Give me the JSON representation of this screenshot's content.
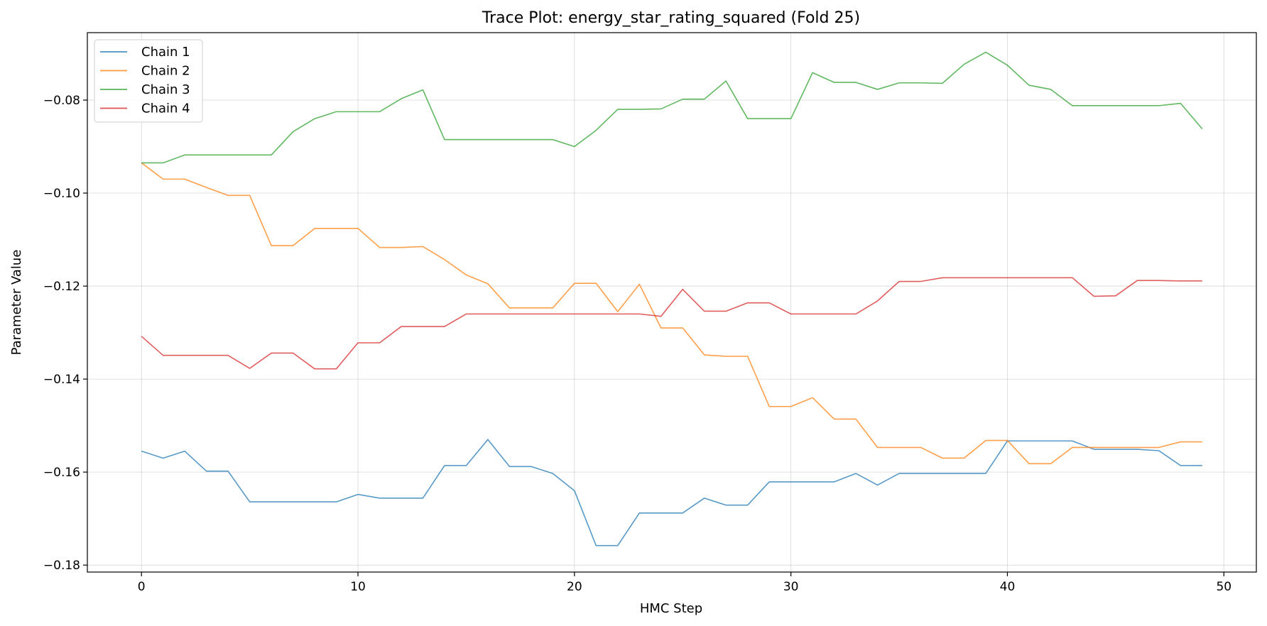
{
  "chart_data": {
    "type": "line",
    "title": "Trace Plot: energy_star_rating_squared (Fold 25)",
    "xlabel": "HMC Step",
    "ylabel": "Parameter Value",
    "xlim": [
      -2.5,
      51.5
    ],
    "ylim": [
      -0.1815,
      -0.0655
    ],
    "xticks": [
      0,
      10,
      20,
      30,
      40,
      50
    ],
    "yticks": [
      -0.18,
      -0.16,
      -0.14,
      -0.12,
      -0.1,
      -0.08
    ],
    "ytick_labels": [
      "−0.18",
      "−0.16",
      "−0.14",
      "−0.12",
      "−0.10",
      "−0.08"
    ],
    "grid": true,
    "legend_position": "top-left",
    "x": [
      0,
      1,
      2,
      3,
      4,
      5,
      6,
      7,
      8,
      9,
      10,
      11,
      12,
      13,
      14,
      15,
      16,
      17,
      18,
      19,
      20,
      21,
      22,
      23,
      24,
      25,
      26,
      27,
      28,
      29,
      30,
      31,
      32,
      33,
      34,
      35,
      36,
      37,
      38,
      39,
      40,
      41,
      42,
      43,
      44,
      45,
      46,
      47,
      48,
      49
    ],
    "series": [
      {
        "name": "Chain 1",
        "color": "#1f77b4",
        "values": [
          -0.1555,
          -0.157,
          -0.1555,
          -0.1598,
          -0.1598,
          -0.1664,
          -0.1664,
          -0.1664,
          -0.1664,
          -0.1664,
          -0.1648,
          -0.1656,
          -0.1656,
          -0.1656,
          -0.1586,
          -0.1586,
          -0.153,
          -0.1588,
          -0.1588,
          -0.1603,
          -0.164,
          -0.1758,
          -0.1758,
          -0.1688,
          -0.1688,
          -0.1688,
          -0.1656,
          -0.1671,
          -0.1671,
          -0.1621,
          -0.1621,
          -0.1621,
          -0.1621,
          -0.1603,
          -0.1628,
          -0.1603,
          -0.1603,
          -0.1603,
          -0.1603,
          -0.1603,
          -0.1533,
          -0.1533,
          -0.1533,
          -0.1533,
          -0.1551,
          -0.1551,
          -0.1551,
          -0.1554,
          -0.1586,
          -0.1586
        ]
      },
      {
        "name": "Chain 2",
        "color": "#ff7f0e",
        "values": [
          -0.0935,
          -0.097,
          -0.097,
          -0.0988,
          -0.1005,
          -0.1005,
          -0.1113,
          -0.1113,
          -0.1076,
          -0.1076,
          -0.1076,
          -0.1117,
          -0.1117,
          -0.1115,
          -0.1143,
          -0.1176,
          -0.1195,
          -0.1247,
          -0.1247,
          -0.1247,
          -0.1194,
          -0.1194,
          -0.1255,
          -0.1196,
          -0.129,
          -0.129,
          -0.1348,
          -0.1351,
          -0.1351,
          -0.1459,
          -0.1459,
          -0.144,
          -0.1486,
          -0.1486,
          -0.1547,
          -0.1547,
          -0.1547,
          -0.157,
          -0.157,
          -0.1532,
          -0.1532,
          -0.1582,
          -0.1582,
          -0.1547,
          -0.1547,
          -0.1547,
          -0.1547,
          -0.1547,
          -0.1535,
          -0.1535
        ]
      },
      {
        "name": "Chain 3",
        "color": "#2ca02c",
        "values": [
          -0.0935,
          -0.0935,
          -0.0918,
          -0.0918,
          -0.0918,
          -0.0918,
          -0.0918,
          -0.0868,
          -0.084,
          -0.0825,
          -0.0825,
          -0.0825,
          -0.0797,
          -0.0778,
          -0.0885,
          -0.0885,
          -0.0885,
          -0.0885,
          -0.0885,
          -0.0885,
          -0.09,
          -0.0865,
          -0.082,
          -0.082,
          -0.0819,
          -0.0798,
          -0.0798,
          -0.0759,
          -0.084,
          -0.084,
          -0.084,
          -0.0741,
          -0.0762,
          -0.0762,
          -0.0777,
          -0.0763,
          -0.0763,
          -0.0764,
          -0.0723,
          -0.0697,
          -0.0725,
          -0.0768,
          -0.0777,
          -0.0812,
          -0.0812,
          -0.0812,
          -0.0812,
          -0.0812,
          -0.0807,
          -0.0862
        ]
      },
      {
        "name": "Chain 4",
        "color": "#d62728",
        "values": [
          -0.1308,
          -0.1349,
          -0.1349,
          -0.1349,
          -0.1349,
          -0.1377,
          -0.1344,
          -0.1344,
          -0.1378,
          -0.1378,
          -0.1322,
          -0.1322,
          -0.1287,
          -0.1287,
          -0.1287,
          -0.126,
          -0.126,
          -0.126,
          -0.126,
          -0.126,
          -0.126,
          -0.126,
          -0.126,
          -0.126,
          -0.1265,
          -0.1207,
          -0.1254,
          -0.1254,
          -0.1236,
          -0.1236,
          -0.126,
          -0.126,
          -0.126,
          -0.126,
          -0.1232,
          -0.119,
          -0.119,
          -0.1182,
          -0.1182,
          -0.1182,
          -0.1182,
          -0.1182,
          -0.1182,
          -0.1182,
          -0.1222,
          -0.1221,
          -0.1188,
          -0.1188,
          -0.1189,
          -0.1189
        ]
      }
    ]
  }
}
